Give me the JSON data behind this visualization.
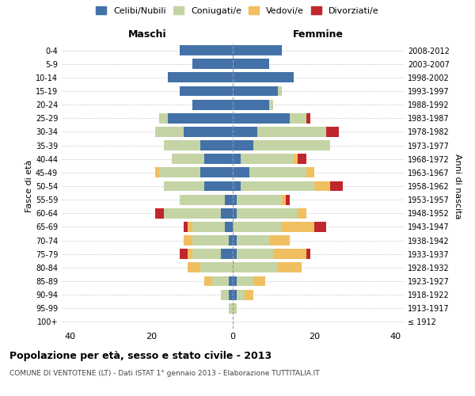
{
  "age_groups": [
    "100+",
    "95-99",
    "90-94",
    "85-89",
    "80-84",
    "75-79",
    "70-74",
    "65-69",
    "60-64",
    "55-59",
    "50-54",
    "45-49",
    "40-44",
    "35-39",
    "30-34",
    "25-29",
    "20-24",
    "15-19",
    "10-14",
    "5-9",
    "0-4"
  ],
  "birth_years": [
    "≤ 1912",
    "1913-1917",
    "1918-1922",
    "1923-1927",
    "1928-1932",
    "1933-1937",
    "1938-1942",
    "1943-1947",
    "1948-1952",
    "1953-1957",
    "1958-1962",
    "1963-1967",
    "1968-1972",
    "1973-1977",
    "1978-1982",
    "1983-1987",
    "1988-1992",
    "1993-1997",
    "1998-2002",
    "2003-2007",
    "2008-2012"
  ],
  "males": {
    "celibe": [
      0,
      0,
      1,
      1,
      0,
      3,
      1,
      2,
      3,
      2,
      7,
      8,
      7,
      8,
      12,
      16,
      10,
      13,
      16,
      10,
      13
    ],
    "coniugato": [
      0,
      1,
      2,
      4,
      8,
      7,
      9,
      8,
      14,
      11,
      10,
      10,
      8,
      9,
      7,
      2,
      0,
      0,
      0,
      0,
      0
    ],
    "vedovo": [
      0,
      0,
      0,
      2,
      3,
      1,
      2,
      1,
      0,
      0,
      0,
      1,
      0,
      0,
      0,
      0,
      0,
      0,
      0,
      0,
      0
    ],
    "divorziato": [
      0,
      0,
      0,
      0,
      0,
      2,
      0,
      1,
      2,
      0,
      0,
      0,
      0,
      0,
      0,
      0,
      0,
      0,
      0,
      0,
      0
    ]
  },
  "females": {
    "nubile": [
      0,
      0,
      1,
      1,
      0,
      1,
      1,
      0,
      1,
      1,
      2,
      4,
      2,
      5,
      6,
      14,
      9,
      11,
      15,
      9,
      12
    ],
    "coniugata": [
      0,
      1,
      2,
      4,
      11,
      9,
      8,
      12,
      15,
      11,
      18,
      14,
      13,
      19,
      17,
      4,
      1,
      1,
      0,
      0,
      0
    ],
    "vedova": [
      0,
      0,
      2,
      3,
      6,
      8,
      5,
      8,
      2,
      1,
      4,
      2,
      1,
      0,
      0,
      0,
      0,
      0,
      0,
      0,
      0
    ],
    "divorziata": [
      0,
      0,
      0,
      0,
      0,
      1,
      0,
      3,
      0,
      1,
      3,
      0,
      2,
      0,
      3,
      1,
      0,
      0,
      0,
      0,
      0
    ]
  },
  "color_celibe": "#4472a8",
  "color_coniugato": "#c5d4a5",
  "color_vedovo": "#f0c060",
  "color_divorziato": "#c0272d",
  "xlim": 42,
  "title": "Popolazione per età, sesso e stato civile - 2013",
  "subtitle": "COMUNE DI VENTOTENE (LT) - Dati ISTAT 1° gennaio 2013 - Elaborazione TUTTITALIA.IT",
  "xlabel_left": "Maschi",
  "xlabel_right": "Femmine",
  "ylabel_left": "Fasce di età",
  "ylabel_right": "Anni di nascita",
  "bg_color": "#ffffff",
  "grid_color": "#cccccc"
}
